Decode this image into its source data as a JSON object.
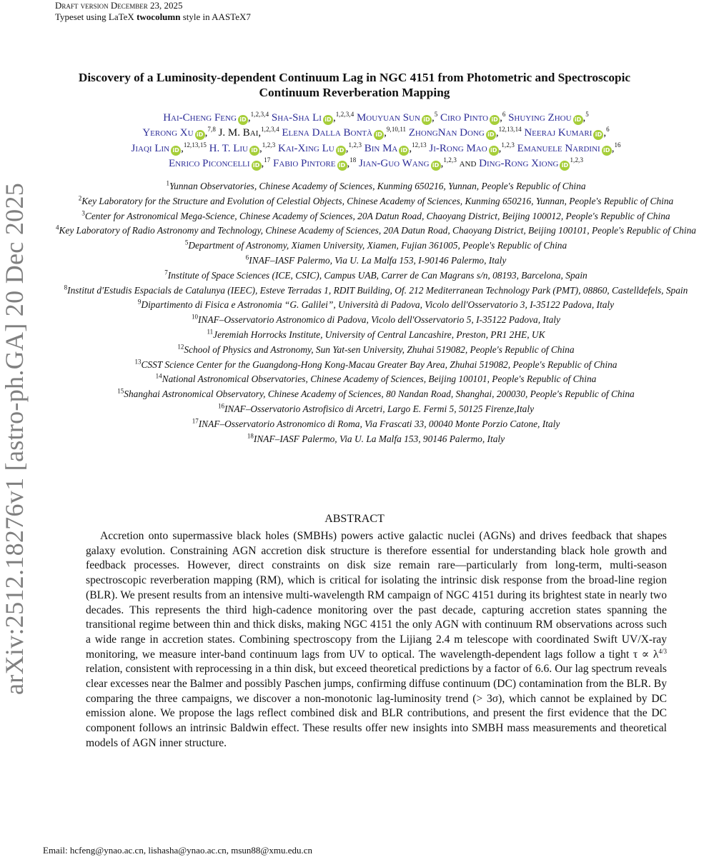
{
  "header": {
    "draft": "Draft version December 23, 2025",
    "typeset_prefix": "Typeset using ",
    "latex": "LaTeX",
    "style_bold": "twocolumn",
    "typeset_suffix": " style in AASTeX7"
  },
  "arxiv_stamp": "arXiv:2512.18276v1  [astro-ph.GA]  20 Dec 2025",
  "title": "Discovery of a Luminosity-dependent Continuum Lag in NGC 4151 from Photometric and Spectroscopic Continuum Reverberation Mapping",
  "orcid_label": "iD",
  "authors": [
    {
      "name": "Hai-Cheng Feng",
      "aff": "1, 2, 3, 4"
    },
    {
      "name": "Sha-Sha Li",
      "aff": "1, 2, 3, 4"
    },
    {
      "name": "Mouyuan Sun",
      "aff": "5"
    },
    {
      "name": "Ciro Pinto",
      "aff": "6"
    },
    {
      "name": "Shuying Zhou",
      "aff": "5"
    },
    {
      "name": "Yerong Xu",
      "aff": "7, 8"
    },
    {
      "name": "J. M. Bai",
      "aff": "1, 2, 3, 4"
    },
    {
      "name": "Elena Dalla Bontà",
      "aff": "9, 10, 11"
    },
    {
      "name": "ZhongNan Dong",
      "aff": "12, 13, 14"
    },
    {
      "name": "Neeraj Kumari",
      "aff": "6"
    },
    {
      "name": "Jiaqi Lin",
      "aff": "12, 13, 15"
    },
    {
      "name": "H. T. Liu",
      "aff": "1, 2, 3"
    },
    {
      "name": "Kai-Xing Lu",
      "aff": "1, 2, 3"
    },
    {
      "name": "Bin Ma",
      "aff": "12, 13"
    },
    {
      "name": "Ji-Rong Mao",
      "aff": "1, 2, 3"
    },
    {
      "name": "Emanuele Nardini",
      "aff": "16"
    },
    {
      "name": "Enrico Piconcelli",
      "aff": "17"
    },
    {
      "name": "Fabio Pintore",
      "aff": "18"
    },
    {
      "name": "Jian-Guo Wang",
      "aff": "1, 2, 3"
    },
    {
      "name": "Ding-Rong Xiong",
      "aff": "1, 2, 3"
    }
  ],
  "and_word": "and",
  "affiliations": [
    {
      "num": "1",
      "text": "Yunnan Observatories, Chinese Academy of Sciences, Kunming 650216, Yunnan, People's Republic of China"
    },
    {
      "num": "2",
      "text": "Key Laboratory for the Structure and Evolution of Celestial Objects, Chinese Academy of Sciences, Kunming 650216, Yunnan, People's Republic of China"
    },
    {
      "num": "3",
      "text": "Center for Astronomical Mega-Science, Chinese Academy of Sciences, 20A Datun Road, Chaoyang District, Beijing 100012, People's Republic of China"
    },
    {
      "num": "4",
      "text": "Key Laboratory of Radio Astronomy and Technology, Chinese Academy of Sciences, 20A Datun Road, Chaoyang District, Beijing 100101, People's Republic of China"
    },
    {
      "num": "5",
      "text": "Department of Astronomy, Xiamen University, Xiamen, Fujian 361005, People's Republic of China"
    },
    {
      "num": "6",
      "text": "INAF–IASF Palermo, Via U. La Malfa 153, I-90146 Palermo, Italy"
    },
    {
      "num": "7",
      "text": "Institute of Space Sciences (ICE, CSIC), Campus UAB, Carrer de Can Magrans s/n, 08193, Barcelona, Spain"
    },
    {
      "num": "8",
      "text": "Institut d'Estudis Espacials de Catalunya (IEEC), Esteve Terradas 1, RDIT Building, Of. 212 Mediterranean Technology Park (PMT), 08860, Castelldefels, Spain"
    },
    {
      "num": "9",
      "text": "Dipartimento di Fisica e Astronomia “G. Galilei”, Università di Padova, Vicolo dell'Osservatorio 3, I-35122 Padova, Italy"
    },
    {
      "num": "10",
      "text": "INAF–Osservatorio Astronomico di Padova, Vicolo dell'Osservatorio 5, I-35122 Padova, Italy"
    },
    {
      "num": "11",
      "text": "Jeremiah Horrocks Institute, University of Central Lancashire, Preston, PR1 2HE, UK"
    },
    {
      "num": "12",
      "text": "School of Physics and Astronomy, Sun Yat-sen University, Zhuhai 519082, People's Republic of China"
    },
    {
      "num": "13",
      "text": "CSST Science Center for the Guangdong-Hong Kong-Macau Greater Bay Area, Zhuhai 519082, People's Republic of China"
    },
    {
      "num": "14",
      "text": "National Astronomical Observatories, Chinese Academy of Sciences, Beijing 100101, People's Republic of China"
    },
    {
      "num": "15",
      "text": "Shanghai Astronomical Observatory, Chinese Academy of Sciences, 80 Nandan Road, Shanghai, 200030, People's Republic of China"
    },
    {
      "num": "16",
      "text": "INAF–Osservatorio Astrofisico di Arcetri, Largo E. Fermi 5, 50125 Firenze,Italy"
    },
    {
      "num": "17",
      "text": "INAF–Osservatorio Astronomico di Roma, Via Frascati 33, 00040 Monte Porzio Catone, Italy"
    },
    {
      "num": "18",
      "text": "INAF–IASF Palermo, Via U. La Malfa 153, 90146 Palermo, Italy"
    }
  ],
  "abstract": {
    "heading": "ABSTRACT",
    "text": "Accretion onto supermassive black holes (SMBHs) powers active galactic nuclei (AGNs) and drives feedback that shapes galaxy evolution. Constraining AGN accretion disk structure is therefore essential for understanding black hole growth and feedback processes. However, direct constraints on disk size remain rare—particularly from long-term, multi-season spectroscopic reverberation mapping (RM), which is critical for isolating the intrinsic disk response from the broad-line region (BLR). We present results from an intensive multi-wavelength RM campaign of NGC 4151 during its brightest state in nearly two decades. This represents the third high-cadence monitoring over the past decade, capturing accretion states spanning the transitional regime between thin and thick disks, making NGC 4151 the only AGN with continuum RM observations across such a wide range in accretion states. Combining spectroscopy from the Lijiang 2.4 m telescope with coordinated Swift UV/X-ray monitoring, we measure inter-band continuum lags from UV to optical. The wavelength-dependent lags follow a tight τ ∝ λ^4/3 relation, consistent with reprocessing in a thin disk, but exceed theoretical predictions by a factor of 6.6. Our lag spectrum reveals clear excesses near the Balmer and possibly Paschen jumps, confirming diffuse continuum (DC) contamination from the BLR. By comparing the three campaigns, we discover a non-monotonic lag-luminosity trend (> 3σ), which cannot be explained by DC emission alone. We propose the lags reflect combined disk and BLR contributions, and present the first evidence that the DC component follows an intrinsic Baldwin effect. These results offer new insights into SMBH mass measurements and theoretical models of AGN inner structure."
  },
  "email": "Email: hcfeng@ynao.ac.cn, lishasha@ynao.ac.cn, msun88@xmu.edu.cn"
}
